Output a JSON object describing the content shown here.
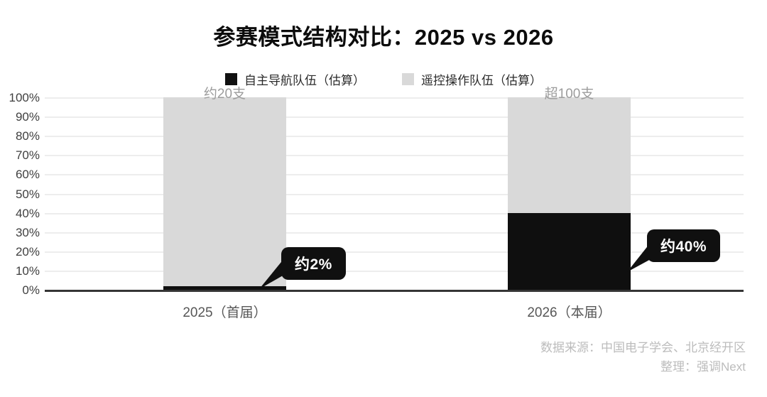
{
  "title": "参赛模式结构对比：2025 vs 2026",
  "legend": [
    {
      "label": "自主导航队伍（估算）",
      "color": "#111111"
    },
    {
      "label": "遥控操作队伍（估算）",
      "color": "#d9d9d9"
    }
  ],
  "chart_data": {
    "type": "bar",
    "stacked": true,
    "unit": "%",
    "categories": [
      "2025（首届）",
      "2026（本届）"
    ],
    "series": [
      {
        "name": "自主导航队伍（估算）",
        "color": "#0f0f0f",
        "values": [
          2,
          40
        ]
      },
      {
        "name": "遥控操作队伍（估算）",
        "color": "#d9d9d9",
        "values": [
          98,
          60
        ]
      }
    ],
    "bar_total_labels": [
      "约20支",
      "超100支"
    ],
    "callouts": [
      "约2%",
      "约40%"
    ],
    "yticks": [
      "100%",
      "90%",
      "80%",
      "70%",
      "60%",
      "50%",
      "40%",
      "30%",
      "20%",
      "10%",
      "0%"
    ],
    "ylim": [
      0,
      100
    ],
    "grid": true,
    "legend_position": "top"
  },
  "footer": {
    "source": "数据来源：中国电子学会、北京经开区",
    "credit": "整理：强调Next"
  }
}
